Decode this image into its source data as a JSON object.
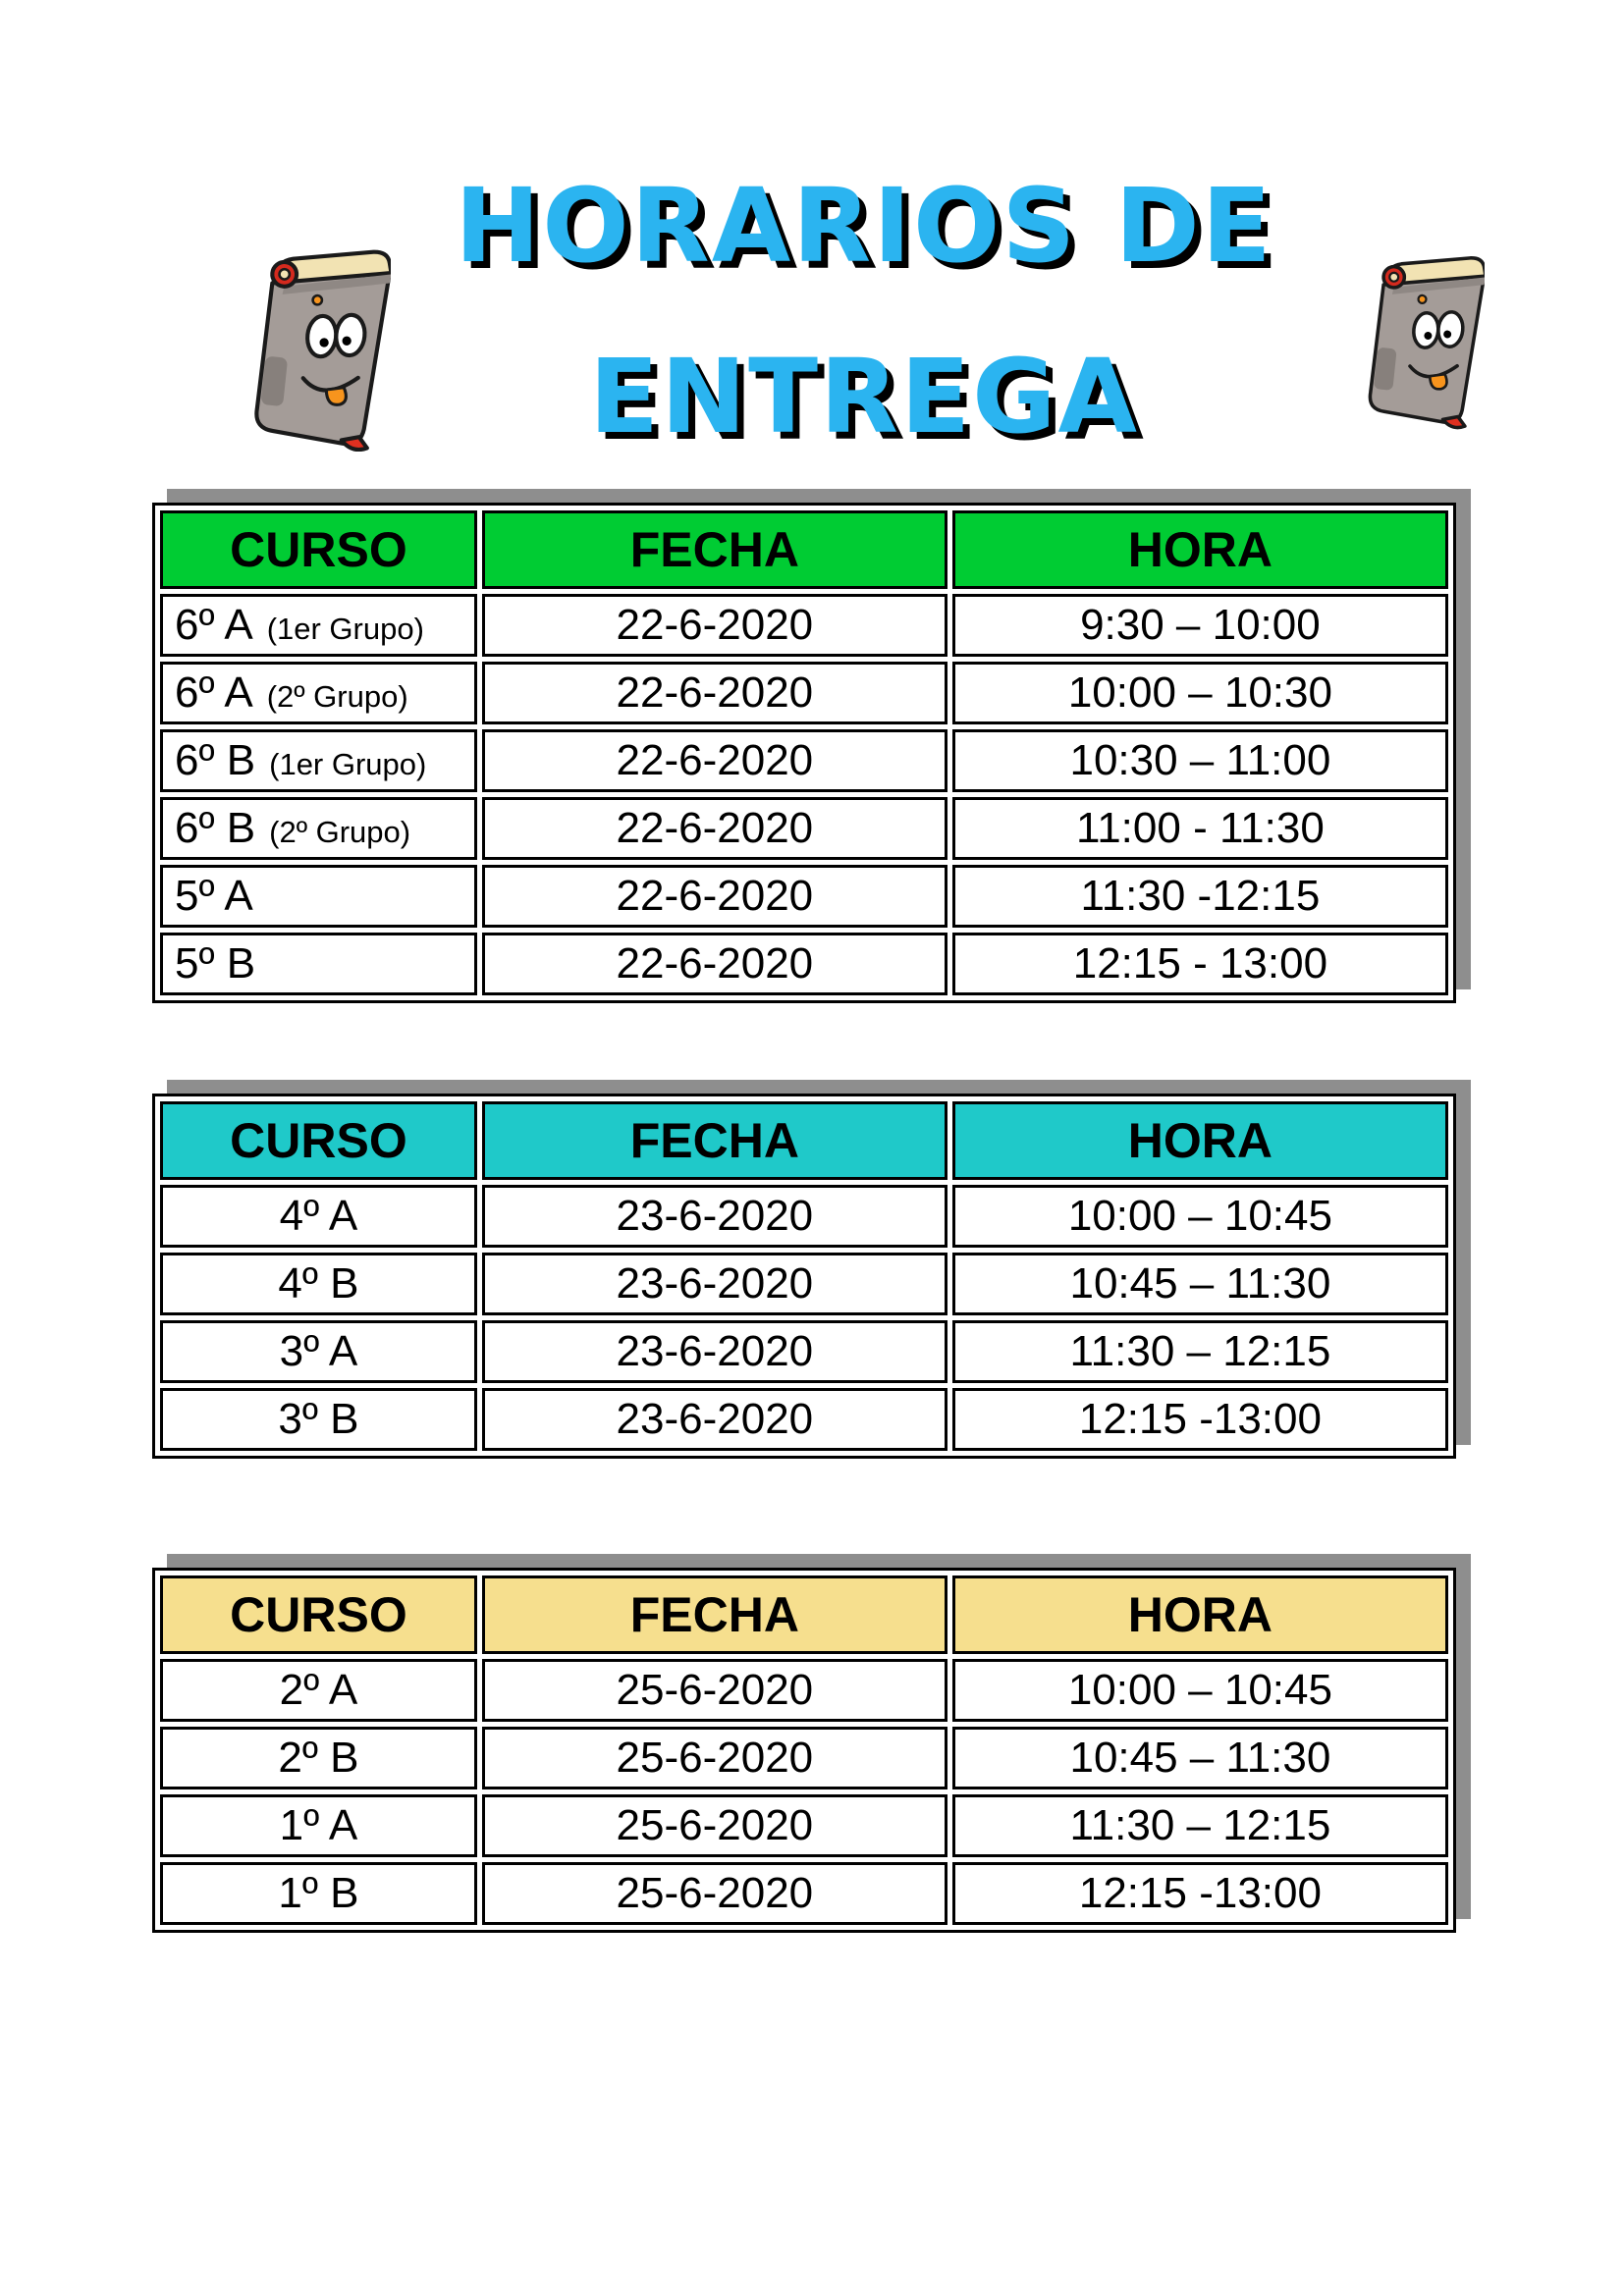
{
  "title": {
    "line1": "HORARIOS DE",
    "line2": "ENTREGA",
    "color": "#2BB4F0",
    "shadow_color": "#000000"
  },
  "icons": {
    "left_book": "smiling-book-clipart",
    "right_book": "smiling-book-clipart"
  },
  "shadow_color": "#8E8E8E",
  "tables": [
    {
      "header_bg": "#00CC33",
      "columns": [
        "CURSO",
        "FECHA",
        "HORA"
      ],
      "curso_align": "left",
      "rows": [
        {
          "curso": "6º A",
          "curso_note": "(1er Grupo)",
          "fecha": "22-6-2020",
          "hora": "9:30 – 10:00"
        },
        {
          "curso": "6º A",
          "curso_note": "(2º Grupo)",
          "fecha": "22-6-2020",
          "hora": "10:00 – 10:30"
        },
        {
          "curso": "6º B",
          "curso_note": "(1er Grupo)",
          "fecha": "22-6-2020",
          "hora": "10:30 – 11:00"
        },
        {
          "curso": "6º B",
          "curso_note": "(2º Grupo)",
          "fecha": "22-6-2020",
          "hora": "11:00 - 11:30"
        },
        {
          "curso": "5º A",
          "curso_note": "",
          "fecha": "22-6-2020",
          "hora": "11:30 -12:15"
        },
        {
          "curso": "5º B",
          "curso_note": "",
          "fecha": "22-6-2020",
          "hora": "12:15 - 13:00"
        }
      ]
    },
    {
      "header_bg": "#1FC9C9",
      "columns": [
        "CURSO",
        "FECHA",
        "HORA"
      ],
      "curso_align": "center",
      "rows": [
        {
          "curso": "4º A",
          "curso_note": "",
          "fecha": "23-6-2020",
          "hora": "10:00 – 10:45"
        },
        {
          "curso": "4º B",
          "curso_note": "",
          "fecha": "23-6-2020",
          "hora": "10:45 – 11:30"
        },
        {
          "curso": "3º A",
          "curso_note": "",
          "fecha": "23-6-2020",
          "hora": "11:30 – 12:15"
        },
        {
          "curso": "3º B",
          "curso_note": "",
          "fecha": "23-6-2020",
          "hora": "12:15 -13:00"
        }
      ]
    },
    {
      "header_bg": "#F6DF8E",
      "columns": [
        "CURSO",
        "FECHA",
        "HORA"
      ],
      "curso_align": "center",
      "rows": [
        {
          "curso": "2º A",
          "curso_note": "",
          "fecha": "25-6-2020",
          "hora": "10:00 – 10:45"
        },
        {
          "curso": "2º B",
          "curso_note": "",
          "fecha": "25-6-2020",
          "hora": "10:45 – 11:30"
        },
        {
          "curso": "1º A",
          "curso_note": "",
          "fecha": "25-6-2020",
          "hora": "11:30 – 12:15"
        },
        {
          "curso": "1º B",
          "curso_note": "",
          "fecha": "25-6-2020",
          "hora": "12:15 -13:00"
        }
      ]
    }
  ]
}
